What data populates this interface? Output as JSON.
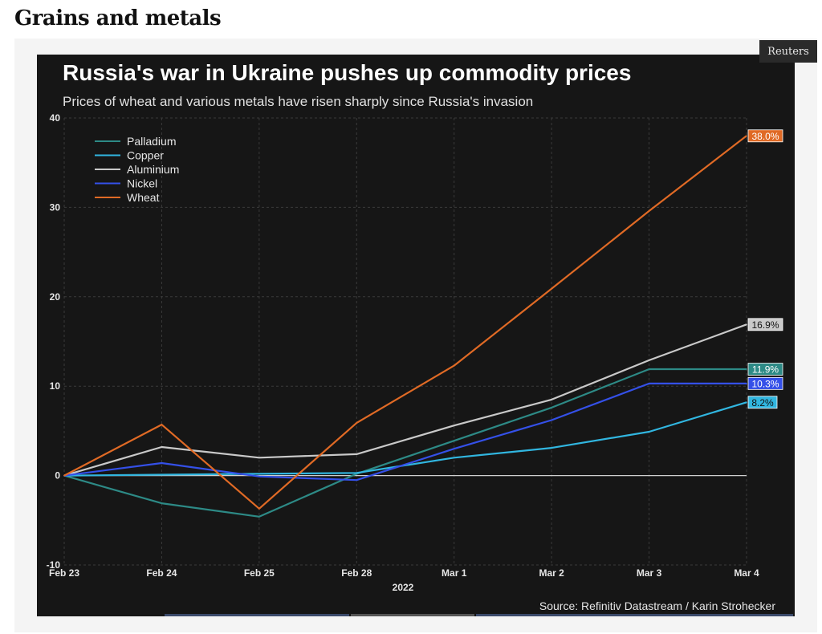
{
  "page": {
    "heading": "Grains and metals",
    "badge": "Reuters"
  },
  "colors": {
    "background": "#161616",
    "grid": "#3a3a3a",
    "zero_line": "#cfcfcf",
    "text": "#ffffff",
    "tick_text": "#e6e6e6"
  },
  "chart_data": {
    "type": "line",
    "title": "Russia's war in Ukraine pushes up commodity prices",
    "subtitle": "Prices of wheat and various metals have risen sharply since Russia's invasion",
    "xlabel": "2022",
    "ylabel": "",
    "categories": [
      "Feb 23",
      "Feb 24",
      "Feb 25",
      "Feb 28",
      "Mar 1",
      "Mar 2",
      "Mar 3",
      "Mar 4"
    ],
    "ylim": [
      -10,
      40
    ],
    "yticks": [
      -10,
      0,
      10,
      20,
      30,
      40
    ],
    "grid": true,
    "legend_position": "top-left",
    "source": "Source: Refinitiv Datastream / Karin Strohecker",
    "series": [
      {
        "name": "Palladium",
        "color": "#2d8a86",
        "values": [
          0,
          -3.1,
          -4.6,
          0.2,
          3.9,
          7.6,
          11.9,
          11.9
        ],
        "end_label": "11.9%",
        "label_text_color": "#ffffff"
      },
      {
        "name": "Copper",
        "color": "#31b6e0",
        "values": [
          0,
          0.1,
          0.2,
          0.3,
          2.0,
          3.1,
          4.9,
          8.2
        ],
        "end_label": "8.2%",
        "label_text_color": "#111111"
      },
      {
        "name": "Aluminium",
        "color": "#c9c9c9",
        "values": [
          0,
          3.2,
          2.0,
          2.4,
          5.6,
          8.5,
          12.9,
          16.9
        ],
        "end_label": "16.9%",
        "label_text_color": "#111111"
      },
      {
        "name": "Nickel",
        "color": "#3450e8",
        "values": [
          0,
          1.4,
          -0.1,
          -0.5,
          3.0,
          6.2,
          10.3,
          10.3
        ],
        "end_label": "10.3%",
        "label_text_color": "#ffffff"
      },
      {
        "name": "Wheat",
        "color": "#e06a25",
        "values": [
          0,
          5.7,
          -3.7,
          5.9,
          12.3,
          20.9,
          29.6,
          38.0
        ],
        "end_label": "38.0%",
        "label_text_color": "#ffffff"
      }
    ]
  }
}
